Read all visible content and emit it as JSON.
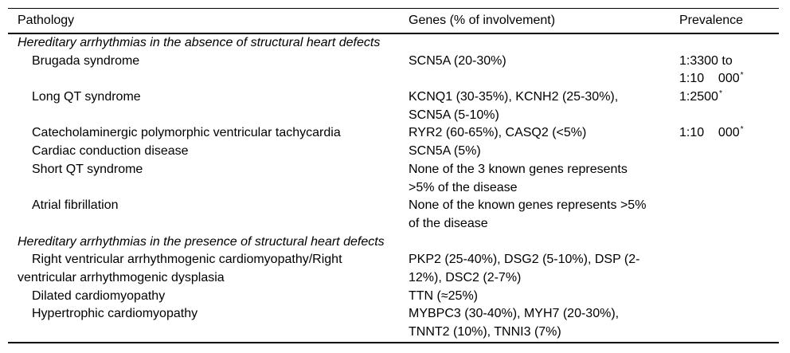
{
  "table": {
    "columns": [
      {
        "label": "Pathology"
      },
      {
        "label": "Genes (% of involvement)"
      },
      {
        "label": "Prevalence"
      }
    ],
    "footnote_marker": "*",
    "rows": [
      {
        "type": "section",
        "pathology": [
          "Hereditary arrhythmias in the absence of structural heart defects"
        ],
        "genes": [],
        "prevalence": []
      },
      {
        "type": "item",
        "pathology": [
          "Brugada syndrome"
        ],
        "genes": [
          "SCN5A (20-30%)"
        ],
        "prevalence": [
          {
            "text": "1:3300 to"
          },
          {
            "text": "1:10    000",
            "sup": "*"
          }
        ]
      },
      {
        "type": "item",
        "pathology": [
          "Long QT syndrome"
        ],
        "genes": [
          "KCNQ1 (30-35%), KCNH2 (25-30%),",
          "SCN5A (5-10%)"
        ],
        "prevalence": [
          {
            "text": "1:2500",
            "sup": "*"
          }
        ]
      },
      {
        "type": "item",
        "pathology": [
          "Catecholaminergic polymorphic ventricular tachycardia"
        ],
        "genes": [
          "RYR2 (60-65%), CASQ2 (<5%)"
        ],
        "prevalence": [
          {
            "text": "1:10    000",
            "sup": "*"
          }
        ]
      },
      {
        "type": "item",
        "pathology": [
          "Cardiac conduction disease"
        ],
        "genes": [
          "SCN5A (5%)"
        ],
        "prevalence": []
      },
      {
        "type": "item",
        "pathology": [
          "Short QT syndrome"
        ],
        "genes": [
          "None of the 3 known genes represents",
          ">5% of the disease"
        ],
        "prevalence": []
      },
      {
        "type": "item",
        "pathology": [
          "Atrial fibrillation"
        ],
        "genes": [
          "None of the known genes represents >5%",
          "of the disease"
        ],
        "prevalence": []
      },
      {
        "type": "section",
        "pathology": [
          "Hereditary arrhythmias in the presence of structural heart defects"
        ],
        "genes": [],
        "prevalence": []
      },
      {
        "type": "item",
        "pathology": [
          "Right ventricular arrhythmogenic cardiomyopathy/Right",
          "ventricular arrhythmogenic dysplasia"
        ],
        "genes": [
          "PKP2 (25-40%), DSG2 (5-10%), DSP (2-",
          "12%), DSC2 (2-7%)"
        ],
        "prevalence": []
      },
      {
        "type": "item",
        "pathology": [
          "Dilated cardiomyopathy"
        ],
        "genes": [
          "TTN (≈25%)"
        ],
        "prevalence": []
      },
      {
        "type": "item",
        "pathology": [
          "Hypertrophic cardiomyopathy"
        ],
        "genes": [
          "MYBPC3 (30-40%), MYH7 (20-30%),",
          "TNNT2 (10%), TNNI3 (7%)"
        ],
        "prevalence": []
      }
    ]
  },
  "colors": {
    "text": "#000000",
    "background": "#ffffff",
    "rule": "#000000"
  }
}
